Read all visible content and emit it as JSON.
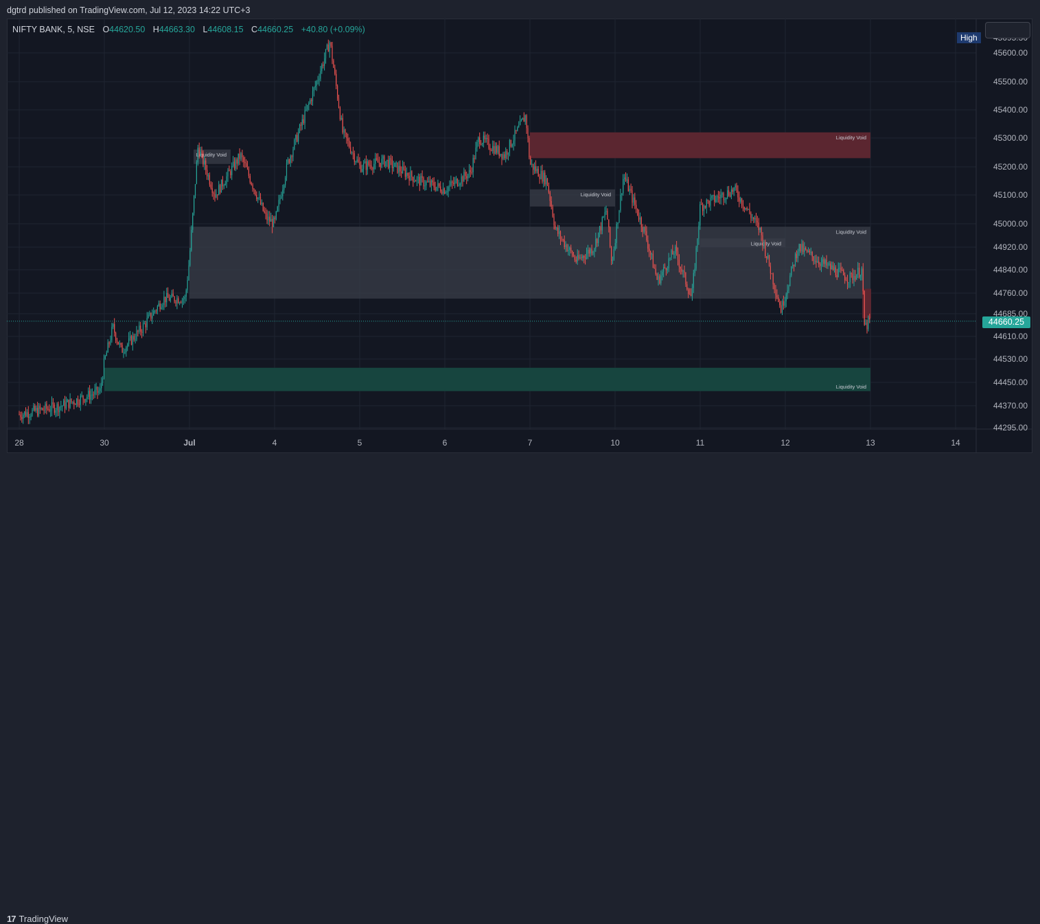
{
  "header": {
    "publish_text": "dgtrd published on TradingView.com, Jul 12, 2023 14:22 UTC+3"
  },
  "legend": {
    "symbol": "NIFTY BANK, 5, NSE",
    "o_label": "O",
    "o_value": "44620.50",
    "h_label": "H",
    "h_value": "44663.30",
    "l_label": "L",
    "l_value": "44608.15",
    "c_label": "C",
    "c_value": "44660.25",
    "change": "+40.80 (+0.09%)"
  },
  "high_badge": "High",
  "high_value": "45695.30",
  "current_price": "44660.25",
  "footer": {
    "logo_mark": "17",
    "logo_text": "TradingView"
  },
  "colors": {
    "up": "#26a69a",
    "down": "#ef5350",
    "background": "#131722",
    "grid": "#1f2431",
    "axis_text": "#b2b5be",
    "void_gray": "#3a3d48",
    "void_red": "#5b2630",
    "void_green": "#17453f"
  },
  "chart_data": {
    "type": "candlestick",
    "symbol": "NIFTY BANK",
    "interval": "5",
    "exchange": "NSE",
    "x_ticks": [
      "28",
      "30",
      "Jul",
      "4",
      "5",
      "6",
      "7",
      "10",
      "11",
      "12",
      "13",
      "14"
    ],
    "y_ticks": [
      "45600.00",
      "45500.00",
      "45400.00",
      "45300.00",
      "45200.00",
      "45100.00",
      "45000.00",
      "44920.00",
      "44840.00",
      "44760.00",
      "44685.00",
      "44610.00",
      "44530.00",
      "44450.00",
      "44370.00",
      "44295.00"
    ],
    "price_path": [
      {
        "x": 0.0,
        "p": 44340
      },
      {
        "x": 0.5,
        "p": 44370
      },
      {
        "x": 0.95,
        "p": 44420
      },
      {
        "x": 1.0,
        "p": 44520
      },
      {
        "x": 1.1,
        "p": 44640
      },
      {
        "x": 1.2,
        "p": 44560
      },
      {
        "x": 1.45,
        "p": 44640
      },
      {
        "x": 1.7,
        "p": 44740
      },
      {
        "x": 1.95,
        "p": 44740
      },
      {
        "x": 2.0,
        "p": 44880
      },
      {
        "x": 2.1,
        "p": 45270
      },
      {
        "x": 2.3,
        "p": 45100
      },
      {
        "x": 2.6,
        "p": 45240
      },
      {
        "x": 2.9,
        "p": 45020
      },
      {
        "x": 3.0,
        "p": 45000
      },
      {
        "x": 3.15,
        "p": 45210
      },
      {
        "x": 3.45,
        "p": 45460
      },
      {
        "x": 3.65,
        "p": 45640
      },
      {
        "x": 3.8,
        "p": 45320
      },
      {
        "x": 4.0,
        "p": 45200
      },
      {
        "x": 4.3,
        "p": 45220
      },
      {
        "x": 4.7,
        "p": 45150
      },
      {
        "x": 5.0,
        "p": 45120
      },
      {
        "x": 5.3,
        "p": 45180
      },
      {
        "x": 5.4,
        "p": 45300
      },
      {
        "x": 5.7,
        "p": 45240
      },
      {
        "x": 5.95,
        "p": 45380
      },
      {
        "x": 6.0,
        "p": 45210
      },
      {
        "x": 6.2,
        "p": 45150
      },
      {
        "x": 6.3,
        "p": 44980
      },
      {
        "x": 6.55,
        "p": 44870
      },
      {
        "x": 6.75,
        "p": 44920
      },
      {
        "x": 6.9,
        "p": 45050
      },
      {
        "x": 6.96,
        "p": 44860
      },
      {
        "x": 7.1,
        "p": 45170
      },
      {
        "x": 7.35,
        "p": 44970
      },
      {
        "x": 7.5,
        "p": 44800
      },
      {
        "x": 7.7,
        "p": 44910
      },
      {
        "x": 7.9,
        "p": 44740
      },
      {
        "x": 8.0,
        "p": 45060
      },
      {
        "x": 8.4,
        "p": 45120
      },
      {
        "x": 8.7,
        "p": 44980
      },
      {
        "x": 8.95,
        "p": 44700
      },
      {
        "x": 9.15,
        "p": 44920
      },
      {
        "x": 9.45,
        "p": 44860
      },
      {
        "x": 9.75,
        "p": 44810
      },
      {
        "x": 9.9,
        "p": 44840
      },
      {
        "x": 9.93,
        "p": 44640
      },
      {
        "x": 10.0,
        "p": 44660
      }
    ],
    "zones": [
      {
        "label": "Liquidity Void",
        "color": "gray",
        "from": "Jul",
        "to": "13",
        "top": 44990,
        "bottom": 44740
      },
      {
        "label": "Liquidity Void",
        "color": "gray",
        "from": "Jul",
        "to": "Jul",
        "top": 45260,
        "bottom": 45210
      },
      {
        "label": "Liquidity Void",
        "color": "gray",
        "from": "7",
        "to": "10",
        "top": 45120,
        "bottom": 45060
      },
      {
        "label": "Liquidity Void",
        "color": "gray",
        "from": "11",
        "to": "12",
        "top": 44950,
        "bottom": 44920
      },
      {
        "label": "Liquidity Void",
        "color": "red",
        "from": "7",
        "to": "13",
        "top": 45320,
        "bottom": 45230
      },
      {
        "label": "Liquidity Void",
        "color": "green",
        "from": "30",
        "to": "13",
        "top": 44500,
        "bottom": 44420
      },
      {
        "label": "",
        "color": "red",
        "from": "13",
        "to": "13",
        "top": 44775,
        "bottom": 44670
      }
    ],
    "current_price": 44660.25,
    "high": 45695.3
  }
}
